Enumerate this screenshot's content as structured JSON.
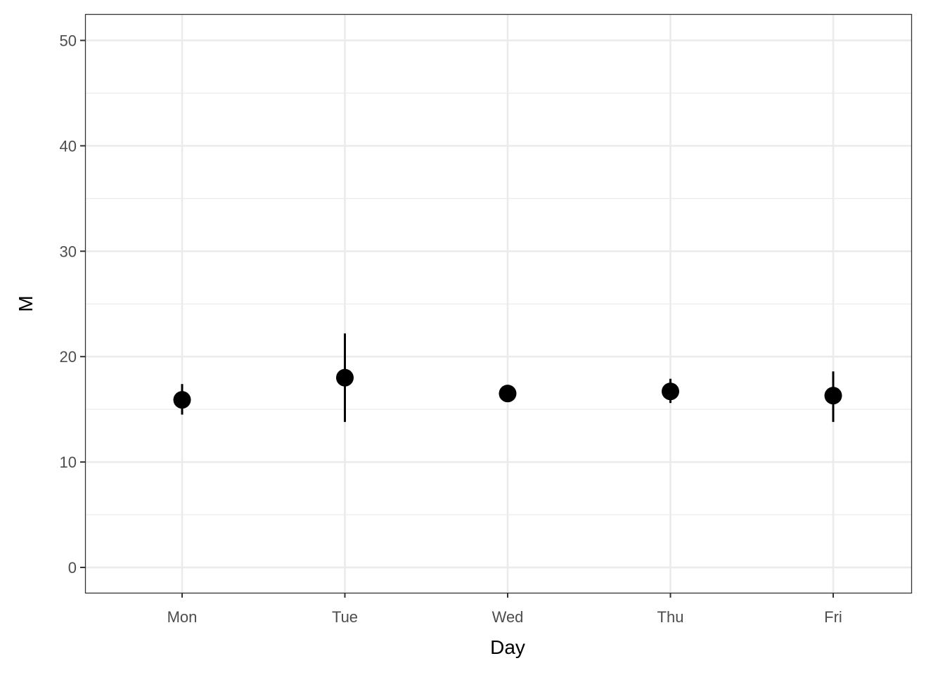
{
  "chart_data": {
    "type": "scatter",
    "title": "",
    "xlabel": "Day",
    "ylabel": "M",
    "categories": [
      "Mon",
      "Tue",
      "Wed",
      "Thu",
      "Fri"
    ],
    "values": [
      15.9,
      18.0,
      16.5,
      16.7,
      16.3
    ],
    "error_low": [
      14.5,
      13.8,
      16.5,
      15.6,
      13.8
    ],
    "error_high": [
      17.4,
      22.2,
      16.5,
      17.9,
      18.6
    ],
    "ylim": [
      -2.4,
      52.5
    ],
    "yticks": [
      0,
      10,
      20,
      30,
      40,
      50
    ],
    "grid": true,
    "colors": {
      "points": "#000000",
      "grid": "#ebebeb",
      "panel_border": "#333333"
    }
  }
}
